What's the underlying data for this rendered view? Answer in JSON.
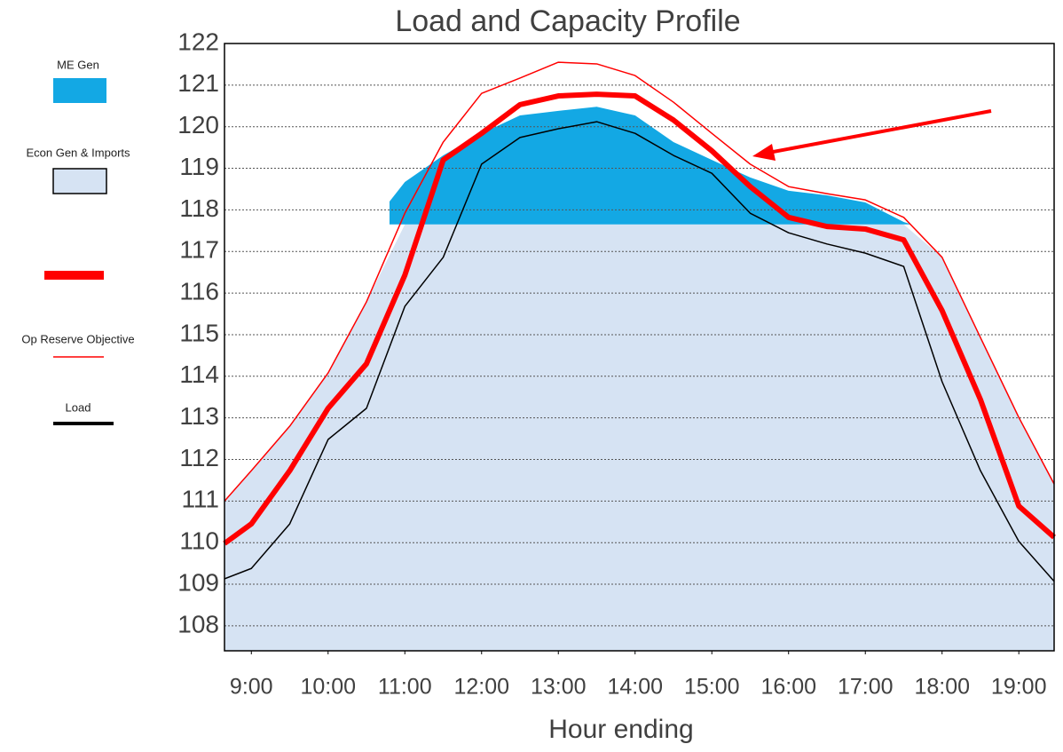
{
  "chart_data": {
    "type": "line",
    "title": "Load and Capacity Profile",
    "x_label": "Hour ending",
    "xlim": [
      8.65,
      19.46
    ],
    "xticks": [
      {
        "value": 9,
        "label": "9:00"
      },
      {
        "value": 10,
        "label": "10:00"
      },
      {
        "value": 11,
        "label": "11:00"
      },
      {
        "value": 12,
        "label": "12:00"
      },
      {
        "value": 13,
        "label": "13:00"
      },
      {
        "value": 14,
        "label": "14:00"
      },
      {
        "value": 15,
        "label": "15:00"
      },
      {
        "value": 16,
        "label": "16:00"
      },
      {
        "value": 17,
        "label": "17:00"
      },
      {
        "value": 18,
        "label": "18:00"
      },
      {
        "value": 19,
        "label": "19:00"
      }
    ],
    "ylim": [
      107.4,
      122
    ],
    "yticks": [
      108,
      109,
      110,
      111,
      112,
      113,
      114,
      115,
      116,
      117,
      118,
      119,
      120,
      121,
      122
    ],
    "grid": true,
    "x": [
      8.65,
      9,
      9.5,
      10,
      10.5,
      11,
      11.5,
      12,
      12.5,
      13,
      13.5,
      14,
      14.5,
      15,
      15.5,
      16,
      16.5,
      17,
      17.5,
      18,
      18.5,
      19,
      19.46
    ],
    "series": [
      {
        "name": "ME Gen",
        "kind": "area",
        "color": "#13a8e4",
        "base": 117.65,
        "x": [
          10.8,
          11,
          11.5,
          12,
          12.5,
          13,
          13.5,
          14,
          14.5,
          15,
          15.5,
          16,
          16.5,
          17,
          17.5,
          17.6
        ],
        "values": [
          118.2,
          118.67,
          119.31,
          119.84,
          120.27,
          120.38,
          120.48,
          120.27,
          119.63,
          119.2,
          118.78,
          118.46,
          118.35,
          118.18,
          117.71,
          117.65
        ]
      },
      {
        "name": "Econ Gen & Imports",
        "kind": "area",
        "color": "#d6e3f3",
        "values": [
          111.0,
          111.73,
          112.8,
          114.08,
          115.79,
          117.65,
          117.65,
          117.65,
          117.65,
          117.65,
          117.65,
          117.65,
          117.65,
          117.65,
          117.65,
          117.65,
          117.65,
          117.65,
          117.65,
          116.86,
          114.93,
          113.01,
          111.41
        ]
      },
      {
        "kind": "line",
        "color": "#ff0000",
        "width": 6,
        "values": [
          109.98,
          110.45,
          111.73,
          113.23,
          114.3,
          116.43,
          119.2,
          119.84,
          120.53,
          120.74,
          120.78,
          120.74,
          120.16,
          119.42,
          118.56,
          117.82,
          117.6,
          117.54,
          117.28,
          115.58,
          113.44,
          110.88,
          110.13
        ]
      },
      {
        "name": "Op Reserve Objective",
        "kind": "line",
        "color": "#ff0000",
        "width": 1.5,
        "values": [
          111.0,
          111.73,
          112.8,
          114.08,
          115.79,
          117.92,
          119.63,
          120.8,
          121.17,
          121.55,
          121.51,
          121.23,
          120.59,
          119.84,
          119.1,
          118.56,
          118.39,
          118.24,
          117.82,
          116.86,
          114.93,
          113.01,
          111.41
        ]
      },
      {
        "name": "Load",
        "kind": "line",
        "color": "#000000",
        "width": 1.5,
        "values": [
          109.13,
          109.38,
          110.45,
          112.48,
          113.23,
          115.68,
          116.86,
          119.1,
          119.74,
          119.95,
          120.12,
          119.84,
          119.31,
          118.88,
          117.92,
          117.45,
          117.18,
          116.96,
          116.64,
          113.87,
          111.73,
          110.03,
          109.07
        ]
      }
    ]
  }
}
